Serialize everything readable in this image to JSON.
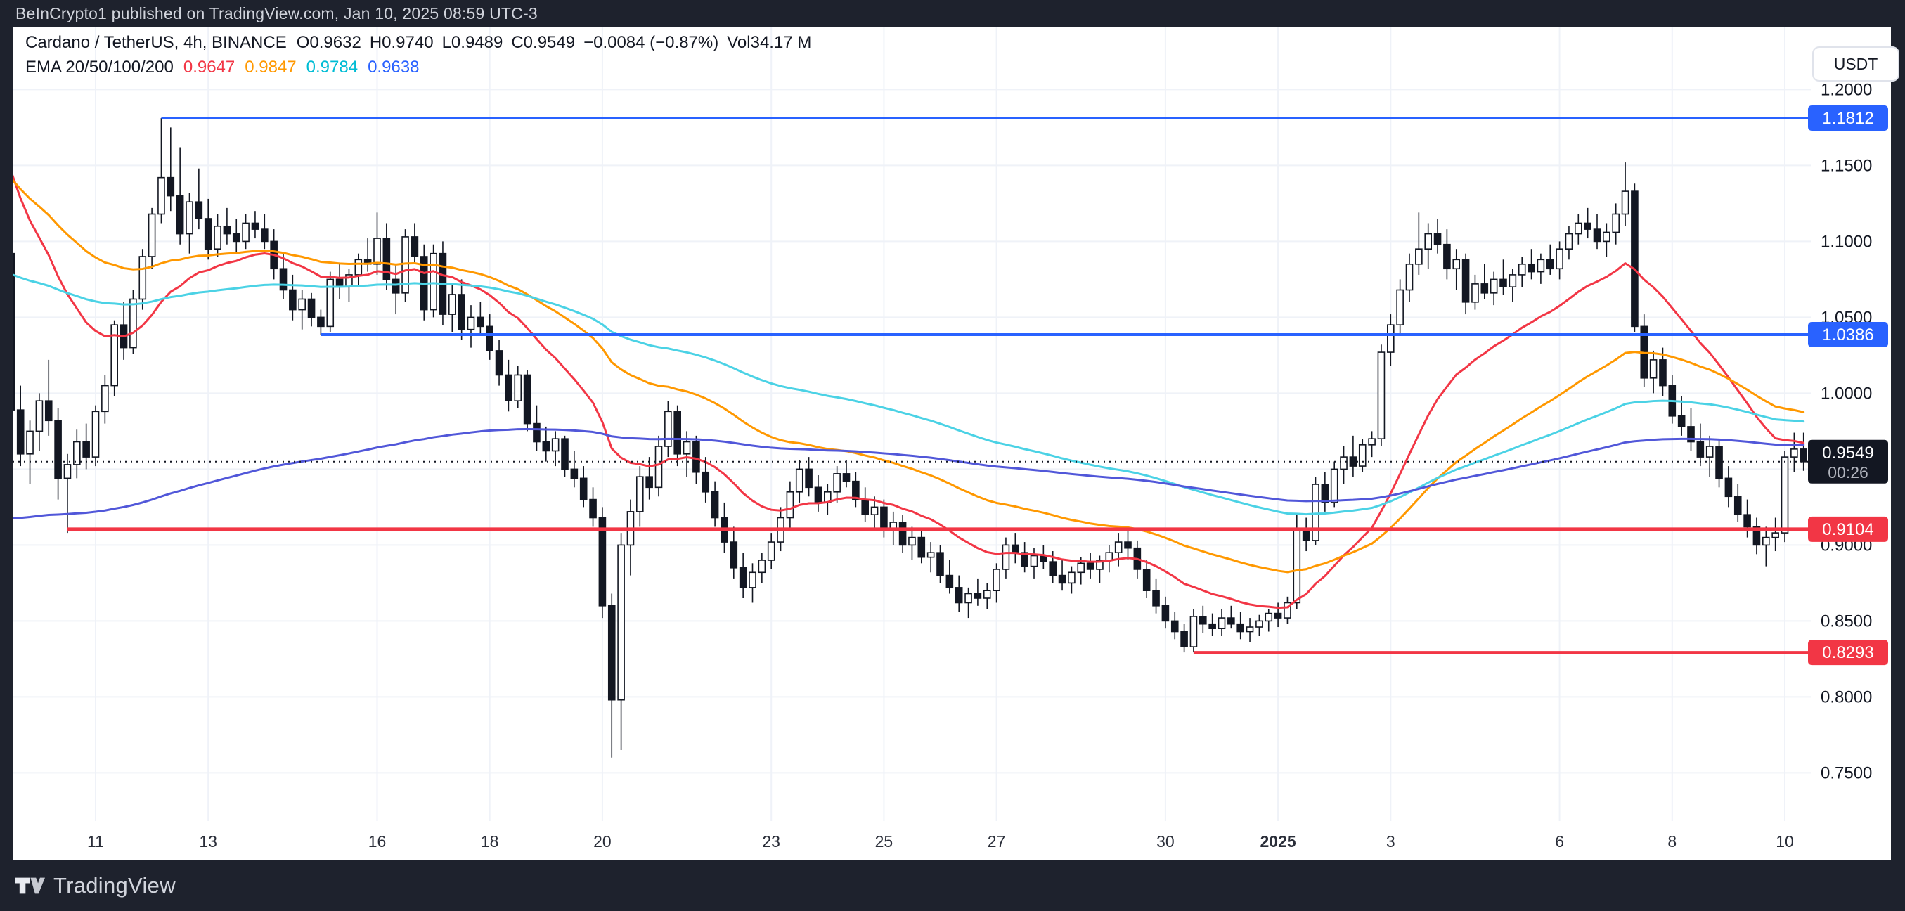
{
  "top_bar": {
    "text": "BeInCrypto1 published on TradingView.com, Jan 10, 2025 08:59 UTC-3"
  },
  "legend": {
    "symbol": "Cardano / TetherUS, 4h, BINANCE",
    "items": [
      {
        "label": "O",
        "value": "0.9632"
      },
      {
        "label": "H",
        "value": "0.9740"
      },
      {
        "label": "L",
        "value": "0.9489"
      },
      {
        "label": "C",
        "value": "0.9549"
      },
      {
        "label": "",
        "value": "−0.0084 (−0.87%)"
      },
      {
        "label": "Vol",
        "value": "34.17 M"
      }
    ]
  },
  "ema_legend": {
    "label": "EMA 20/50/100/200",
    "values": [
      {
        "text": "0.9647",
        "color": "#F23645"
      },
      {
        "text": "0.9847",
        "color": "#FF9800"
      },
      {
        "text": "0.9784",
        "color": "#00BCD4"
      },
      {
        "text": "0.9638",
        "color": "#2962FF"
      }
    ]
  },
  "price_axis": {
    "currency": "USDT",
    "labels": [
      {
        "text": "1.2000",
        "price": 1.2
      },
      {
        "text": "1.1500",
        "price": 1.15
      },
      {
        "text": "1.1000",
        "price": 1.1
      },
      {
        "text": "1.0500",
        "price": 1.05
      },
      {
        "text": "1.0000",
        "price": 1.0
      },
      {
        "text": "0.9000",
        "price": 0.9
      },
      {
        "text": "0.8500",
        "price": 0.85
      },
      {
        "text": "0.8000",
        "price": 0.8
      },
      {
        "text": "0.7500",
        "price": 0.75
      }
    ],
    "grid_prices": [
      1.2,
      1.15,
      1.1,
      1.05,
      1.0,
      0.95,
      0.9,
      0.85,
      0.8,
      0.75
    ],
    "badges": [
      {
        "text": "1.1812",
        "price": 1.1812,
        "bg": "#2962FF",
        "fg": "#FFFFFF"
      },
      {
        "text": "1.0386",
        "price": 1.0386,
        "bg": "#2962FF",
        "fg": "#FFFFFF"
      },
      {
        "text": "0.9549",
        "sub": "00:26",
        "price": 0.9549,
        "bg": "#131722",
        "fg": "#FFFFFF",
        "sub_fg": "#B2B5BE"
      },
      {
        "text": "0.9104",
        "price": 0.9104,
        "bg": "#F23645",
        "fg": "#FFFFFF"
      },
      {
        "text": "0.8293",
        "price": 0.8293,
        "bg": "#F23645",
        "fg": "#FFFFFF"
      }
    ]
  },
  "time_axis": {
    "labels": [
      {
        "text": "11",
        "index": 10
      },
      {
        "text": "13",
        "index": 22
      },
      {
        "text": "16",
        "index": 40
      },
      {
        "text": "18",
        "index": 52
      },
      {
        "text": "20",
        "index": 64
      },
      {
        "text": "23",
        "index": 82
      },
      {
        "text": "25",
        "index": 94
      },
      {
        "text": "27",
        "index": 106
      },
      {
        "text": "30",
        "index": 124
      },
      {
        "text": "2025",
        "index": 136,
        "bold": true
      },
      {
        "text": "3",
        "index": 148
      },
      {
        "text": "6",
        "index": 166
      },
      {
        "text": "8",
        "index": 178
      },
      {
        "text": "10",
        "index": 190
      }
    ]
  },
  "footer": {
    "brand": "TradingView"
  },
  "chart_data": {
    "type": "candlestick",
    "title": "Cardano / TetherUS, 4h, BINANCE",
    "interval": "4h",
    "ylim": [
      0.717,
      1.241
    ],
    "grid": true,
    "current_price": {
      "price": 0.9549,
      "countdown": "00:26",
      "line_color": "#131722"
    },
    "rays": [
      {
        "price": 1.1812,
        "color": "#2962FF",
        "width": 4,
        "start_index": 17
      },
      {
        "price": 1.0386,
        "color": "#2962FF",
        "width": 4,
        "start_index": 34
      },
      {
        "price": 0.9104,
        "color": "#F23645",
        "width": 5,
        "start_index": 7
      },
      {
        "price": 0.8293,
        "color": "#F23645",
        "width": 4,
        "start_index": 127
      }
    ],
    "emas": [
      {
        "period": 20,
        "color": "#F23645",
        "seed": 1.17,
        "last": 0.9647
      },
      {
        "period": 50,
        "color": "#FF9800",
        "seed": 1.15,
        "last": 0.9847
      },
      {
        "period": 100,
        "color": "#4BD2E5",
        "seed": 1.08,
        "last": 0.9784
      },
      {
        "period": 200,
        "color": "#5157D9",
        "seed": 0.915,
        "last": 0.9638
      }
    ],
    "candle_colors": {
      "up_fill": "#FFFFFF",
      "up_border": "#131722",
      "down_fill": "#131722",
      "wick": "#131722"
    },
    "candles": [
      [
        1.105,
        1.112,
        1.085,
        1.092
      ],
      [
        1.092,
        1.095,
        0.909,
        0.989
      ],
      [
        0.989,
        1.005,
        0.952,
        0.96
      ],
      [
        0.96,
        0.982,
        0.94,
        0.975
      ],
      [
        0.975,
        1.0,
        0.962,
        0.995
      ],
      [
        0.995,
        1.022,
        0.972,
        0.982
      ],
      [
        0.982,
        0.99,
        0.93,
        0.944
      ],
      [
        0.944,
        0.96,
        0.908,
        0.953
      ],
      [
        0.953,
        0.976,
        0.944,
        0.968
      ],
      [
        0.968,
        0.98,
        0.95,
        0.958
      ],
      [
        0.958,
        0.992,
        0.952,
        0.988
      ],
      [
        0.988,
        1.012,
        0.98,
        1.005
      ],
      [
        1.005,
        1.048,
        0.998,
        1.045
      ],
      [
        1.045,
        1.06,
        1.022,
        1.03
      ],
      [
        1.03,
        1.068,
        1.026,
        1.062
      ],
      [
        1.062,
        1.095,
        1.055,
        1.09
      ],
      [
        1.09,
        1.122,
        1.082,
        1.118
      ],
      [
        1.118,
        1.1812,
        1.112,
        1.142
      ],
      [
        1.142,
        1.175,
        1.12,
        1.13
      ],
      [
        1.13,
        1.162,
        1.098,
        1.105
      ],
      [
        1.105,
        1.132,
        1.092,
        1.126
      ],
      [
        1.126,
        1.148,
        1.108,
        1.115
      ],
      [
        1.115,
        1.128,
        1.088,
        1.095
      ],
      [
        1.095,
        1.118,
        1.09,
        1.11
      ],
      [
        1.11,
        1.122,
        1.098,
        1.105
      ],
      [
        1.105,
        1.115,
        1.092,
        1.1
      ],
      [
        1.1,
        1.118,
        1.095,
        1.112
      ],
      [
        1.112,
        1.12,
        1.102,
        1.108
      ],
      [
        1.108,
        1.118,
        1.095,
        1.1
      ],
      [
        1.1,
        1.108,
        1.075,
        1.082
      ],
      [
        1.082,
        1.092,
        1.062,
        1.068
      ],
      [
        1.068,
        1.078,
        1.048,
        1.055
      ],
      [
        1.055,
        1.068,
        1.042,
        1.062
      ],
      [
        1.062,
        1.066,
        1.044,
        1.05
      ],
      [
        1.05,
        1.055,
        1.0386,
        1.044
      ],
      [
        1.044,
        1.08,
        1.04,
        1.075
      ],
      [
        1.075,
        1.085,
        1.062,
        1.07
      ],
      [
        1.07,
        1.082,
        1.06,
        1.078
      ],
      [
        1.078,
        1.092,
        1.07,
        1.088
      ],
      [
        1.088,
        1.102,
        1.08,
        1.085
      ],
      [
        1.085,
        1.119,
        1.078,
        1.102
      ],
      [
        1.102,
        1.112,
        1.068,
        1.075
      ],
      [
        1.075,
        1.085,
        1.052,
        1.066
      ],
      [
        1.066,
        1.108,
        1.06,
        1.103
      ],
      [
        1.103,
        1.112,
        1.085,
        1.09
      ],
      [
        1.09,
        1.098,
        1.048,
        1.055
      ],
      [
        1.055,
        1.098,
        1.05,
        1.092
      ],
      [
        1.092,
        1.1,
        1.045,
        1.052
      ],
      [
        1.052,
        1.072,
        1.04,
        1.065
      ],
      [
        1.065,
        1.075,
        1.035,
        1.042
      ],
      [
        1.042,
        1.058,
        1.03,
        1.05
      ],
      [
        1.05,
        1.06,
        1.038,
        1.044
      ],
      [
        1.044,
        1.052,
        1.022,
        1.028
      ],
      [
        1.028,
        1.035,
        1.005,
        1.012
      ],
      [
        1.012,
        1.022,
        0.988,
        0.995
      ],
      [
        0.995,
        1.018,
        0.99,
        1.012
      ],
      [
        1.012,
        1.015,
        0.975,
        0.98
      ],
      [
        0.98,
        0.992,
        0.962,
        0.968
      ],
      [
        0.968,
        0.978,
        0.955,
        0.962
      ],
      [
        0.962,
        0.975,
        0.952,
        0.97
      ],
      [
        0.97,
        0.972,
        0.945,
        0.95
      ],
      [
        0.95,
        0.962,
        0.938,
        0.944
      ],
      [
        0.944,
        0.952,
        0.925,
        0.93
      ],
      [
        0.93,
        0.938,
        0.912,
        0.918
      ],
      [
        0.918,
        0.925,
        0.852,
        0.86
      ],
      [
        0.86,
        0.868,
        0.76,
        0.798
      ],
      [
        0.798,
        0.908,
        0.765,
        0.9
      ],
      [
        0.9,
        0.93,
        0.88,
        0.922
      ],
      [
        0.922,
        0.952,
        0.912,
        0.945
      ],
      [
        0.945,
        0.958,
        0.93,
        0.938
      ],
      [
        0.938,
        0.972,
        0.932,
        0.965
      ],
      [
        0.965,
        0.995,
        0.958,
        0.988
      ],
      [
        0.988,
        0.992,
        0.952,
        0.96
      ],
      [
        0.96,
        0.975,
        0.945,
        0.968
      ],
      [
        0.968,
        0.972,
        0.94,
        0.948
      ],
      [
        0.948,
        0.958,
        0.928,
        0.935
      ],
      [
        0.935,
        0.942,
        0.912,
        0.918
      ],
      [
        0.918,
        0.928,
        0.895,
        0.902
      ],
      [
        0.902,
        0.912,
        0.878,
        0.885
      ],
      [
        0.885,
        0.895,
        0.865,
        0.872
      ],
      [
        0.872,
        0.888,
        0.862,
        0.882
      ],
      [
        0.882,
        0.895,
        0.875,
        0.89
      ],
      [
        0.89,
        0.908,
        0.884,
        0.902
      ],
      [
        0.902,
        0.925,
        0.896,
        0.918
      ],
      [
        0.918,
        0.942,
        0.91,
        0.935
      ],
      [
        0.935,
        0.956,
        0.928,
        0.95
      ],
      [
        0.95,
        0.958,
        0.932,
        0.938
      ],
      [
        0.938,
        0.946,
        0.922,
        0.928
      ],
      [
        0.928,
        0.94,
        0.92,
        0.935
      ],
      [
        0.935,
        0.952,
        0.928,
        0.947
      ],
      [
        0.947,
        0.956,
        0.938,
        0.942
      ],
      [
        0.942,
        0.948,
        0.925,
        0.93
      ],
      [
        0.93,
        0.938,
        0.915,
        0.92
      ],
      [
        0.92,
        0.932,
        0.91,
        0.925
      ],
      [
        0.925,
        0.93,
        0.905,
        0.91
      ],
      [
        0.91,
        0.922,
        0.9,
        0.915
      ],
      [
        0.915,
        0.92,
        0.895,
        0.9
      ],
      [
        0.9,
        0.912,
        0.89,
        0.905
      ],
      [
        0.905,
        0.91,
        0.888,
        0.892
      ],
      [
        0.892,
        0.902,
        0.882,
        0.895
      ],
      [
        0.895,
        0.9,
        0.875,
        0.88
      ],
      [
        0.88,
        0.89,
        0.868,
        0.872
      ],
      [
        0.872,
        0.88,
        0.856,
        0.862
      ],
      [
        0.862,
        0.872,
        0.852,
        0.868
      ],
      [
        0.868,
        0.878,
        0.86,
        0.865
      ],
      [
        0.865,
        0.875,
        0.858,
        0.87
      ],
      [
        0.87,
        0.888,
        0.862,
        0.884
      ],
      [
        0.884,
        0.905,
        0.878,
        0.9
      ],
      [
        0.9,
        0.908,
        0.888,
        0.895
      ],
      [
        0.895,
        0.902,
        0.882,
        0.886
      ],
      [
        0.886,
        0.898,
        0.878,
        0.893
      ],
      [
        0.893,
        0.9,
        0.884,
        0.889
      ],
      [
        0.889,
        0.896,
        0.875,
        0.88
      ],
      [
        0.88,
        0.89,
        0.87,
        0.875
      ],
      [
        0.875,
        0.886,
        0.868,
        0.882
      ],
      [
        0.882,
        0.892,
        0.874,
        0.888
      ],
      [
        0.888,
        0.895,
        0.878,
        0.884
      ],
      [
        0.884,
        0.893,
        0.875,
        0.89
      ],
      [
        0.89,
        0.9,
        0.882,
        0.895
      ],
      [
        0.895,
        0.908,
        0.886,
        0.902
      ],
      [
        0.902,
        0.9104,
        0.89,
        0.898
      ],
      [
        0.898,
        0.903,
        0.878,
        0.884
      ],
      [
        0.884,
        0.89,
        0.865,
        0.87
      ],
      [
        0.87,
        0.878,
        0.855,
        0.86
      ],
      [
        0.86,
        0.866,
        0.845,
        0.85
      ],
      [
        0.85,
        0.856,
        0.838,
        0.843
      ],
      [
        0.843,
        0.848,
        0.8293,
        0.833
      ],
      [
        0.833,
        0.858,
        0.8293,
        0.853
      ],
      [
        0.853,
        0.86,
        0.842,
        0.848
      ],
      [
        0.848,
        0.855,
        0.84,
        0.845
      ],
      [
        0.845,
        0.858,
        0.84,
        0.852
      ],
      [
        0.852,
        0.86,
        0.845,
        0.848
      ],
      [
        0.848,
        0.856,
        0.838,
        0.843
      ],
      [
        0.843,
        0.852,
        0.836,
        0.846
      ],
      [
        0.846,
        0.854,
        0.84,
        0.85
      ],
      [
        0.85,
        0.858,
        0.843,
        0.855
      ],
      [
        0.855,
        0.862,
        0.846,
        0.852
      ],
      [
        0.852,
        0.866,
        0.848,
        0.862
      ],
      [
        0.862,
        0.92,
        0.858,
        0.911
      ],
      [
        0.911,
        0.918,
        0.896,
        0.903
      ],
      [
        0.903,
        0.945,
        0.9,
        0.94
      ],
      [
        0.94,
        0.948,
        0.922,
        0.928
      ],
      [
        0.928,
        0.955,
        0.925,
        0.95
      ],
      [
        0.95,
        0.965,
        0.94,
        0.958
      ],
      [
        0.958,
        0.972,
        0.945,
        0.952
      ],
      [
        0.952,
        0.97,
        0.948,
        0.966
      ],
      [
        0.966,
        0.975,
        0.958,
        0.97
      ],
      [
        0.97,
        1.032,
        0.965,
        1.027
      ],
      [
        1.027,
        1.052,
        1.018,
        1.045
      ],
      [
        1.045,
        1.075,
        1.038,
        1.068
      ],
      [
        1.068,
        1.092,
        1.06,
        1.085
      ],
      [
        1.085,
        1.119,
        1.078,
        1.095
      ],
      [
        1.095,
        1.112,
        1.082,
        1.105
      ],
      [
        1.105,
        1.115,
        1.092,
        1.098
      ],
      [
        1.098,
        1.108,
        1.075,
        1.082
      ],
      [
        1.082,
        1.095,
        1.068,
        1.088
      ],
      [
        1.088,
        1.092,
        1.052,
        1.06
      ],
      [
        1.06,
        1.078,
        1.055,
        1.072
      ],
      [
        1.072,
        1.085,
        1.062,
        1.066
      ],
      [
        1.066,
        1.08,
        1.058,
        1.075
      ],
      [
        1.075,
        1.088,
        1.065,
        1.07
      ],
      [
        1.07,
        1.082,
        1.06,
        1.078
      ],
      [
        1.078,
        1.09,
        1.07,
        1.085
      ],
      [
        1.085,
        1.095,
        1.075,
        1.08
      ],
      [
        1.08,
        1.092,
        1.072,
        1.088
      ],
      [
        1.088,
        1.098,
        1.078,
        1.082
      ],
      [
        1.082,
        1.1,
        1.075,
        1.095
      ],
      [
        1.095,
        1.11,
        1.088,
        1.105
      ],
      [
        1.105,
        1.118,
        1.098,
        1.112
      ],
      [
        1.112,
        1.122,
        1.102,
        1.108
      ],
      [
        1.108,
        1.118,
        1.095,
        1.1
      ],
      [
        1.1,
        1.112,
        1.09,
        1.106
      ],
      [
        1.106,
        1.125,
        1.098,
        1.118
      ],
      [
        1.118,
        1.152,
        1.11,
        1.133
      ],
      [
        1.133,
        1.138,
        1.04,
        1.044
      ],
      [
        1.044,
        1.052,
        1.004,
        1.01
      ],
      [
        1.01,
        1.028,
        1.0,
        1.022
      ],
      [
        1.022,
        1.03,
        0.998,
        1.005
      ],
      [
        1.005,
        1.012,
        0.98,
        0.985
      ],
      [
        0.985,
        0.998,
        0.972,
        0.978
      ],
      [
        0.978,
        0.99,
        0.962,
        0.968
      ],
      [
        0.968,
        0.98,
        0.952,
        0.958
      ],
      [
        0.958,
        0.972,
        0.945,
        0.965
      ],
      [
        0.965,
        0.97,
        0.938,
        0.944
      ],
      [
        0.944,
        0.952,
        0.925,
        0.932
      ],
      [
        0.932,
        0.94,
        0.915,
        0.92
      ],
      [
        0.92,
        0.93,
        0.905,
        0.912
      ],
      [
        0.912,
        0.918,
        0.894,
        0.9
      ],
      [
        0.9,
        0.912,
        0.886,
        0.905
      ],
      [
        0.905,
        0.918,
        0.896,
        0.908
      ],
      [
        0.908,
        0.962,
        0.902,
        0.958
      ],
      [
        0.958,
        0.974,
        0.948,
        0.9632
      ],
      [
        0.9632,
        0.974,
        0.9489,
        0.9549
      ]
    ]
  }
}
